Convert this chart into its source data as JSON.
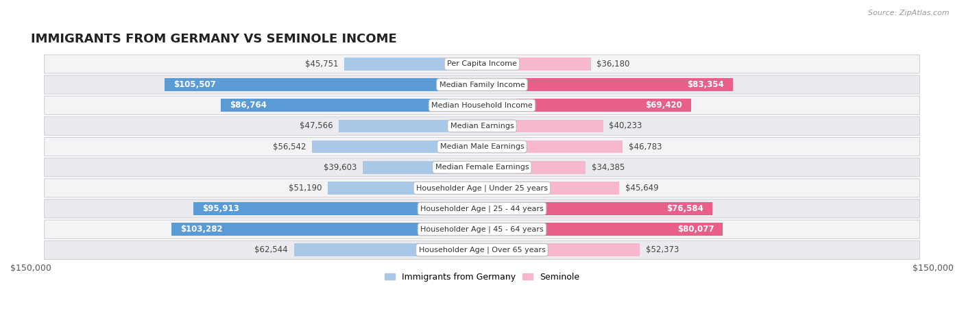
{
  "title": "IMMIGRANTS FROM GERMANY VS SEMINOLE INCOME",
  "source": "Source: ZipAtlas.com",
  "categories": [
    "Per Capita Income",
    "Median Family Income",
    "Median Household Income",
    "Median Earnings",
    "Median Male Earnings",
    "Median Female Earnings",
    "Householder Age | Under 25 years",
    "Householder Age | 25 - 44 years",
    "Householder Age | 45 - 64 years",
    "Householder Age | Over 65 years"
  ],
  "germany_values": [
    45751,
    105507,
    86764,
    47566,
    56542,
    39603,
    51190,
    95913,
    103282,
    62544
  ],
  "seminole_values": [
    36180,
    83354,
    69420,
    40233,
    46783,
    34385,
    45649,
    76584,
    80077,
    52373
  ],
  "germany_color_light": "#a8c8e8",
  "germany_color_dark": "#5b9bd5",
  "seminole_color_light": "#f7b8ce",
  "seminole_color_dark": "#e8608a",
  "bar_height": 0.62,
  "max_value": 150000,
  "label_fontsize": 8.5,
  "title_fontsize": 13,
  "axis_label": "$150,000",
  "legend_germany": "Immigrants from Germany",
  "legend_seminole": "Seminole",
  "germany_dark_threshold": 80000,
  "seminole_dark_threshold": 60000,
  "row_colors": [
    "#f4f4f6",
    "#eaeaef"
  ],
  "row_border_color": "#d0d0d8"
}
